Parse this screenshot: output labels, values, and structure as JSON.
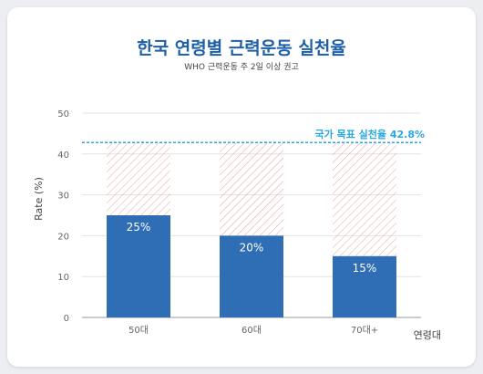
{
  "chart_data": {
    "type": "bar",
    "title": "한국 연령별 근력운동 실천율",
    "subtitle": "WHO 근력운동 주 2일 이상 권고",
    "xlabel": "연령대",
    "ylabel": "Rate (%)",
    "categories": [
      "50대",
      "60대",
      "70대+"
    ],
    "values": [
      25,
      20,
      15
    ],
    "value_labels": [
      "25%",
      "20%",
      "15%"
    ],
    "ylim": [
      0,
      50
    ],
    "yticks": [
      0,
      10,
      20,
      30,
      40,
      50
    ],
    "grid": true,
    "target": {
      "value": 42.8,
      "label": "국가 목표 실천율 42.8%"
    },
    "colors": {
      "bar": "#2f6db5",
      "target": "#29a8e0",
      "gap_hatch": "#e8a0a0",
      "title": "#1e5fa8"
    }
  }
}
